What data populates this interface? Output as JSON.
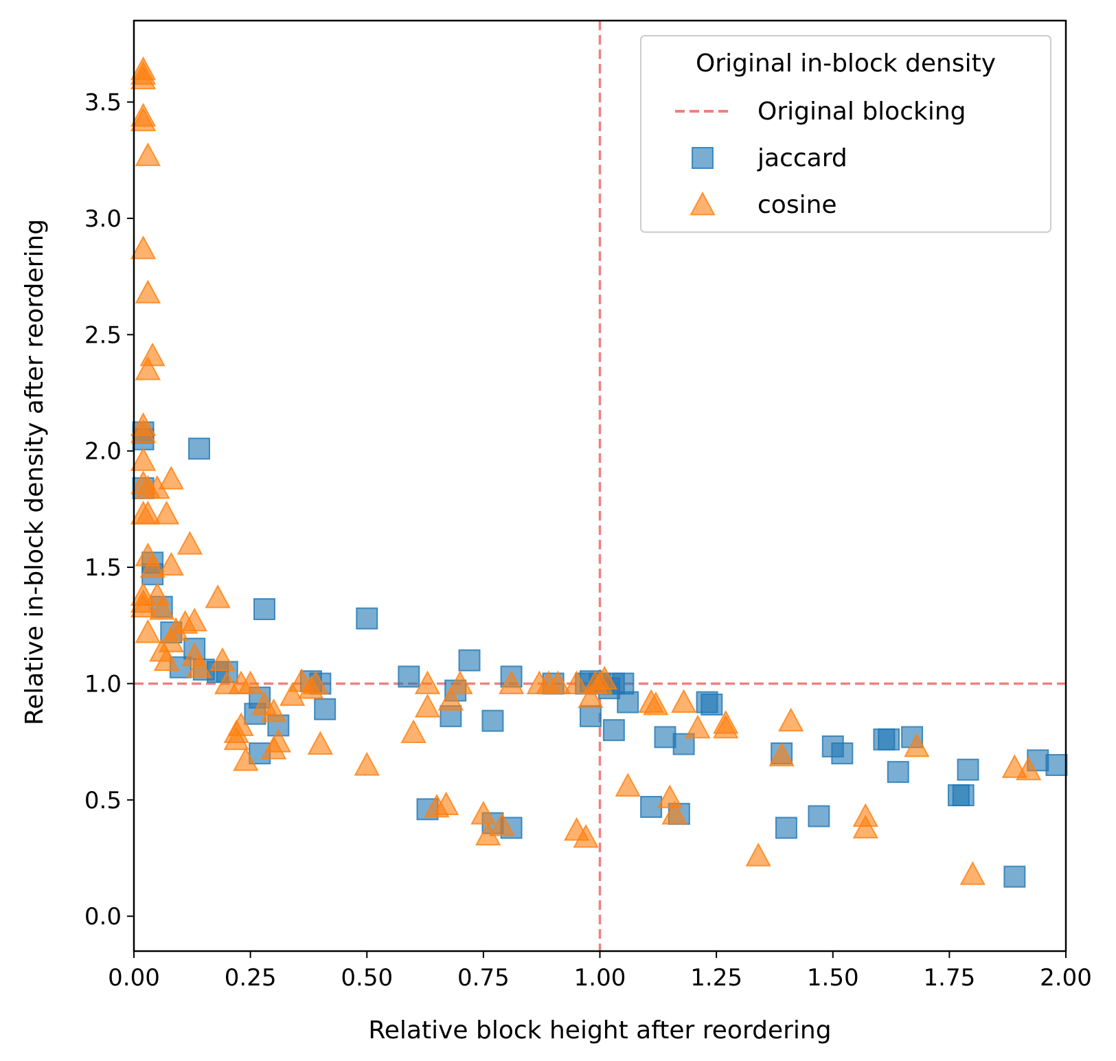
{
  "chart_data": {
    "type": "scatter",
    "xlabel": "Relative block height after reordering",
    "ylabel": "Relative in-block density after reordering",
    "xlim": [
      0.0,
      2.0
    ],
    "ylim": [
      -0.15,
      3.85
    ],
    "xticks": [
      "0.00",
      "0.25",
      "0.50",
      "0.75",
      "1.00",
      "1.25",
      "1.50",
      "1.75",
      "2.00"
    ],
    "yticks": [
      "0.0",
      "0.5",
      "1.0",
      "1.5",
      "2.0",
      "2.5",
      "3.0",
      "3.5"
    ],
    "grid": false,
    "legend": {
      "title": "Original in-block density",
      "placement": "top-right",
      "entries": [
        {
          "label": "Original blocking",
          "kind": "line"
        },
        {
          "label": "jaccard",
          "kind": "square"
        },
        {
          "label": "cosine",
          "kind": "triangle"
        }
      ]
    },
    "reference_lines": [
      {
        "name": "Original blocking",
        "orientation": "vertical",
        "value": 1.0,
        "color": "#f08080",
        "style": "dashed"
      },
      {
        "name": "Original blocking",
        "orientation": "horizontal",
        "value": 1.0,
        "color": "#f08080",
        "style": "dashed"
      }
    ],
    "series": [
      {
        "name": "jaccard",
        "marker": "square",
        "color": "#1f77b4",
        "points": [
          [
            0.02,
            2.08
          ],
          [
            0.02,
            2.05
          ],
          [
            0.02,
            1.84
          ],
          [
            0.04,
            1.52
          ],
          [
            0.04,
            1.47
          ],
          [
            0.06,
            1.33
          ],
          [
            0.08,
            1.22
          ],
          [
            0.1,
            1.07
          ],
          [
            0.13,
            1.15
          ],
          [
            0.14,
            2.01
          ],
          [
            0.15,
            1.06
          ],
          [
            0.18,
            1.05
          ],
          [
            0.2,
            1.05
          ],
          [
            0.26,
            0.87
          ],
          [
            0.27,
            0.94
          ],
          [
            0.27,
            0.7
          ],
          [
            0.28,
            1.32
          ],
          [
            0.31,
            0.82
          ],
          [
            0.38,
            1.01
          ],
          [
            0.4,
            1.0
          ],
          [
            0.41,
            0.89
          ],
          [
            0.5,
            1.28
          ],
          [
            0.59,
            1.03
          ],
          [
            0.63,
            0.46
          ],
          [
            0.68,
            0.86
          ],
          [
            0.69,
            0.97
          ],
          [
            0.72,
            1.1
          ],
          [
            0.77,
            0.84
          ],
          [
            0.77,
            0.4
          ],
          [
            0.81,
            0.38
          ],
          [
            0.81,
            1.03
          ],
          [
            0.9,
            1.0
          ],
          [
            0.97,
            1.0
          ],
          [
            0.98,
            0.86
          ],
          [
            0.98,
            1.01
          ],
          [
            1.0,
            1.0
          ],
          [
            1.02,
            0.98
          ],
          [
            1.03,
            0.8
          ],
          [
            1.03,
            1.0
          ],
          [
            1.05,
            1.0
          ],
          [
            1.06,
            0.92
          ],
          [
            1.11,
            0.47
          ],
          [
            1.14,
            0.77
          ],
          [
            1.17,
            0.44
          ],
          [
            1.18,
            0.74
          ],
          [
            1.23,
            0.92
          ],
          [
            1.24,
            0.91
          ],
          [
            1.39,
            0.7
          ],
          [
            1.4,
            0.38
          ],
          [
            1.47,
            0.43
          ],
          [
            1.5,
            0.73
          ],
          [
            1.52,
            0.7
          ],
          [
            1.61,
            0.76
          ],
          [
            1.62,
            0.76
          ],
          [
            1.64,
            0.62
          ],
          [
            1.67,
            0.77
          ],
          [
            1.77,
            0.52
          ],
          [
            1.78,
            0.52
          ],
          [
            1.79,
            0.63
          ],
          [
            1.89,
            0.17
          ],
          [
            1.94,
            0.67
          ],
          [
            1.98,
            0.65
          ]
        ]
      },
      {
        "name": "cosine",
        "marker": "triangle",
        "color": "#ff7f0e",
        "points": [
          [
            0.02,
            3.64
          ],
          [
            0.02,
            3.62
          ],
          [
            0.02,
            3.6
          ],
          [
            0.02,
            3.44
          ],
          [
            0.02,
            3.42
          ],
          [
            0.03,
            3.27
          ],
          [
            0.02,
            2.87
          ],
          [
            0.03,
            2.68
          ],
          [
            0.04,
            2.41
          ],
          [
            0.03,
            2.35
          ],
          [
            0.02,
            2.11
          ],
          [
            0.02,
            2.08
          ],
          [
            0.02,
            1.96
          ],
          [
            0.02,
            1.86
          ],
          [
            0.05,
            1.84
          ],
          [
            0.03,
            1.84
          ],
          [
            0.02,
            1.73
          ],
          [
            0.03,
            1.73
          ],
          [
            0.07,
            1.73
          ],
          [
            0.08,
            1.88
          ],
          [
            0.12,
            1.6
          ],
          [
            0.03,
            1.55
          ],
          [
            0.04,
            1.5
          ],
          [
            0.08,
            1.51
          ],
          [
            0.02,
            1.38
          ],
          [
            0.02,
            1.35
          ],
          [
            0.02,
            1.33
          ],
          [
            0.05,
            1.38
          ],
          [
            0.06,
            1.32
          ],
          [
            0.03,
            1.22
          ],
          [
            0.06,
            1.14
          ],
          [
            0.07,
            1.1
          ],
          [
            0.08,
            1.18
          ],
          [
            0.09,
            1.23
          ],
          [
            0.11,
            1.26
          ],
          [
            0.13,
            1.27
          ],
          [
            0.13,
            1.12
          ],
          [
            0.14,
            1.07
          ],
          [
            0.18,
            1.37
          ],
          [
            0.19,
            1.1
          ],
          [
            0.2,
            1.0
          ],
          [
            0.23,
            1.0
          ],
          [
            0.25,
            1.0
          ],
          [
            0.22,
            0.79
          ],
          [
            0.22,
            0.76
          ],
          [
            0.23,
            0.82
          ],
          [
            0.24,
            0.67
          ],
          [
            0.28,
            0.91
          ],
          [
            0.3,
            0.88
          ],
          [
            0.3,
            0.72
          ],
          [
            0.31,
            0.75
          ],
          [
            0.34,
            0.95
          ],
          [
            0.36,
            1.01
          ],
          [
            0.38,
            0.98
          ],
          [
            0.39,
            1.0
          ],
          [
            0.4,
            0.74
          ],
          [
            0.5,
            0.65
          ],
          [
            0.6,
            0.79
          ],
          [
            0.63,
            0.9
          ],
          [
            0.63,
            1.0
          ],
          [
            0.65,
            0.47
          ],
          [
            0.67,
            0.48
          ],
          [
            0.68,
            0.93
          ],
          [
            0.7,
            1.0
          ],
          [
            0.75,
            0.44
          ],
          [
            0.76,
            0.35
          ],
          [
            0.79,
            0.39
          ],
          [
            0.81,
            1.0
          ],
          [
            0.87,
            1.0
          ],
          [
            0.89,
            1.0
          ],
          [
            0.91,
            1.0
          ],
          [
            0.95,
            0.37
          ],
          [
            0.95,
            1.0
          ],
          [
            0.97,
            0.34
          ],
          [
            0.98,
            0.94
          ],
          [
            0.99,
            1.0
          ],
          [
            1.0,
            1.0
          ],
          [
            1.01,
            1.02
          ],
          [
            1.06,
            0.56
          ],
          [
            1.11,
            0.92
          ],
          [
            1.12,
            0.91
          ],
          [
            1.15,
            0.51
          ],
          [
            1.16,
            0.44
          ],
          [
            1.18,
            0.92
          ],
          [
            1.21,
            0.81
          ],
          [
            1.27,
            0.83
          ],
          [
            1.27,
            0.81
          ],
          [
            1.34,
            0.26
          ],
          [
            1.39,
            0.69
          ],
          [
            1.41,
            0.84
          ],
          [
            1.57,
            0.43
          ],
          [
            1.57,
            0.38
          ],
          [
            1.68,
            0.73
          ],
          [
            1.8,
            0.18
          ],
          [
            1.89,
            0.64
          ],
          [
            1.92,
            0.63
          ]
        ]
      }
    ]
  }
}
